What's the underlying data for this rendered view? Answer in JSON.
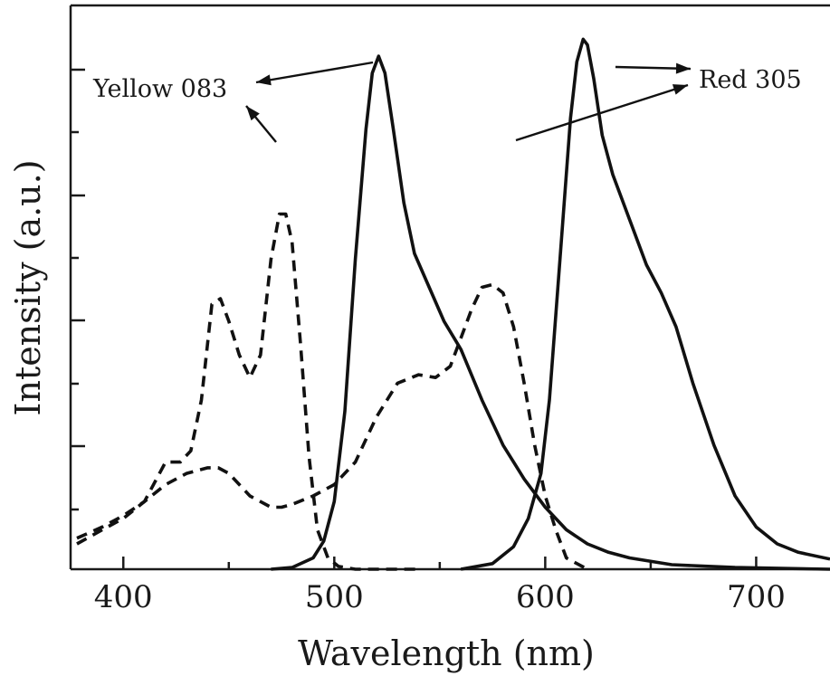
{
  "chart_data": {
    "type": "line",
    "xlabel": "Wavelength (nm)",
    "ylabel": "Intensity (a.u.)",
    "xlim": [
      375,
      735
    ],
    "ylim": [
      0,
      1.0
    ],
    "x_ticks": [
      400,
      500,
      600,
      700
    ],
    "x_minor_ticks": [
      450,
      550,
      650
    ],
    "y_ticks": [
      0.05,
      0.1,
      0.15,
      0.2,
      0.25,
      0.3,
      0.35,
      0.4,
      0.45,
      0.5
    ],
    "grid": false,
    "series": [
      {
        "style": "dashed",
        "x": [
          378,
          390,
          400,
          410,
          420,
          427,
          432,
          437,
          442,
          446,
          450,
          455,
          460,
          465,
          470,
          474,
          477,
          480,
          484,
          488,
          492,
          497,
          502,
          510,
          520,
          540
        ],
        "y": [
          0.055,
          0.075,
          0.095,
          0.12,
          0.19,
          0.19,
          0.21,
          0.3,
          0.47,
          0.48,
          0.44,
          0.38,
          0.34,
          0.38,
          0.55,
          0.63,
          0.63,
          0.58,
          0.4,
          0.2,
          0.07,
          0.02,
          0.005,
          0.0,
          0.0,
          0.0
        ]
      },
      {
        "style": "dashed",
        "x": [
          378,
          390,
          400,
          410,
          420,
          430,
          440,
          445,
          450,
          460,
          470,
          475,
          480,
          490,
          500,
          510,
          520,
          530,
          540,
          548,
          555,
          560,
          565,
          570,
          575,
          580,
          585,
          590,
          595,
          600,
          605,
          610,
          620
        ],
        "y": [
          0.045,
          0.07,
          0.09,
          0.12,
          0.15,
          0.17,
          0.18,
          0.18,
          0.17,
          0.13,
          0.11,
          0.11,
          0.115,
          0.13,
          0.15,
          0.19,
          0.27,
          0.33,
          0.345,
          0.34,
          0.36,
          0.41,
          0.46,
          0.5,
          0.505,
          0.49,
          0.43,
          0.33,
          0.22,
          0.13,
          0.07,
          0.02,
          0.0
        ]
      },
      {
        "style": "solid",
        "x": [
          470,
          480,
          490,
          495,
          500,
          505,
          510,
          515,
          518,
          521,
          524,
          528,
          533,
          538,
          545,
          552,
          560,
          570,
          580,
          590,
          600,
          610,
          620,
          630,
          640,
          660,
          690,
          735
        ],
        "y": [
          0.0,
          0.003,
          0.02,
          0.05,
          0.12,
          0.28,
          0.55,
          0.78,
          0.88,
          0.91,
          0.88,
          0.78,
          0.65,
          0.56,
          0.5,
          0.44,
          0.39,
          0.3,
          0.22,
          0.16,
          0.11,
          0.07,
          0.045,
          0.03,
          0.02,
          0.008,
          0.003,
          0.0
        ]
      },
      {
        "style": "solid",
        "x": [
          560,
          575,
          585,
          592,
          598,
          602,
          607,
          612,
          615,
          618,
          620,
          623,
          627,
          632,
          640,
          648,
          655,
          662,
          670,
          680,
          690,
          700,
          710,
          720,
          735
        ],
        "y": [
          0.0,
          0.01,
          0.04,
          0.09,
          0.17,
          0.3,
          0.55,
          0.8,
          0.9,
          0.94,
          0.93,
          0.87,
          0.77,
          0.7,
          0.62,
          0.54,
          0.49,
          0.43,
          0.33,
          0.22,
          0.13,
          0.075,
          0.045,
          0.03,
          0.018
        ]
      }
    ],
    "annotations": [
      "Yellow 083",
      "Red 305"
    ]
  }
}
